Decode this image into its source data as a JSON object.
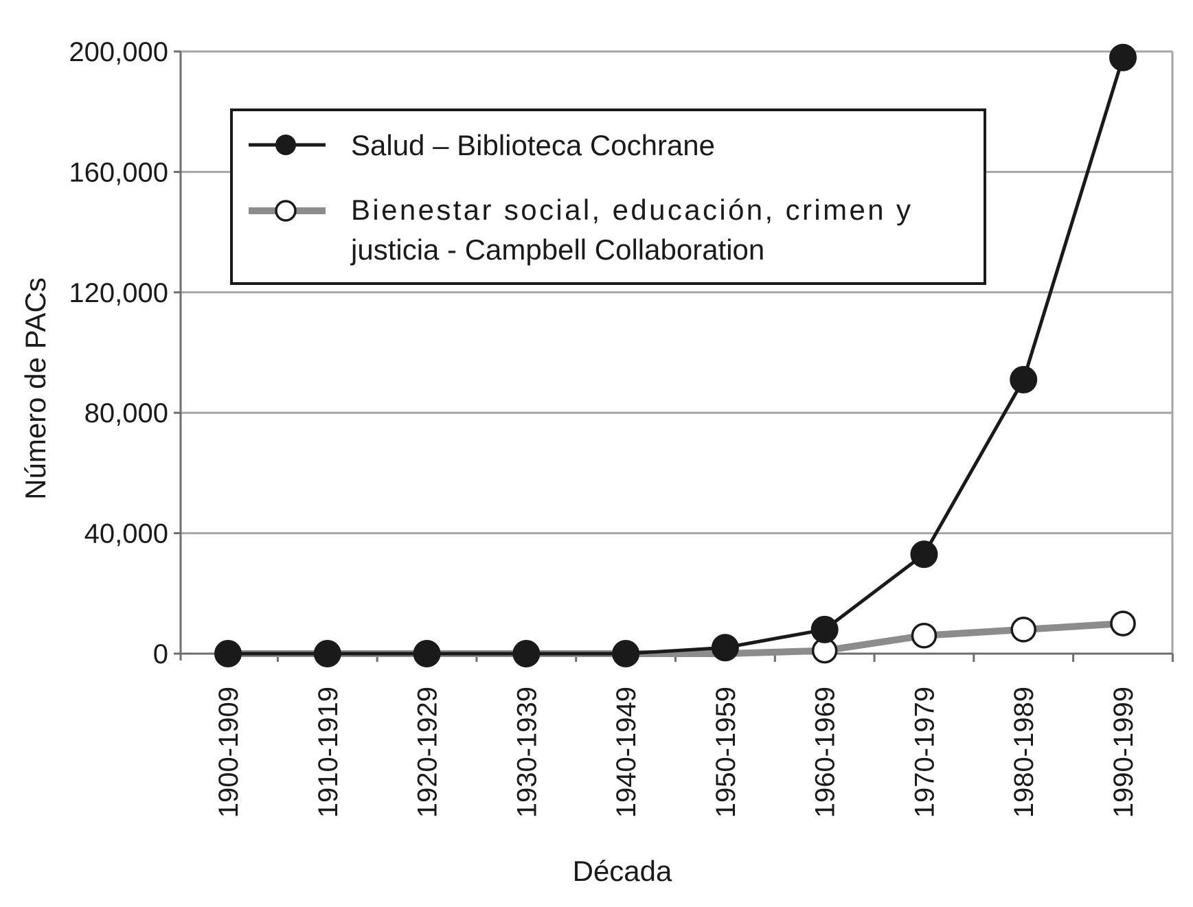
{
  "chart_data": {
    "type": "line",
    "title": "",
    "xlabel": "Década",
    "ylabel": "Número de PACs",
    "categories": [
      "1900-1909",
      "1910-1919",
      "1920-1929",
      "1930-1939",
      "1940-1949",
      "1950-1959",
      "1960-1969",
      "1970-1979",
      "1980-1989",
      "1990-1999"
    ],
    "ylim": [
      0,
      200000
    ],
    "yticks": [
      0,
      40000,
      80000,
      120000,
      160000,
      200000
    ],
    "ytick_labels": [
      "0",
      "40,000",
      "80,000",
      "120,000",
      "160,000",
      "200,000"
    ],
    "grid": true,
    "legend_position": "top-left",
    "series": [
      {
        "name": "Salud – Biblioteca Cochrane",
        "color": "#1a1a1a",
        "marker": "filled-circle",
        "values": [
          0,
          0,
          0,
          0,
          0,
          2000,
          8000,
          33000,
          91000,
          198000
        ]
      },
      {
        "name": "Bienestar social, educación, crimen y justicia - Campbell Collaboration",
        "color": "#8c8c8c",
        "marker": "open-circle",
        "values": [
          0,
          0,
          0,
          0,
          0,
          0,
          1000,
          6000,
          8000,
          10000
        ]
      }
    ]
  }
}
